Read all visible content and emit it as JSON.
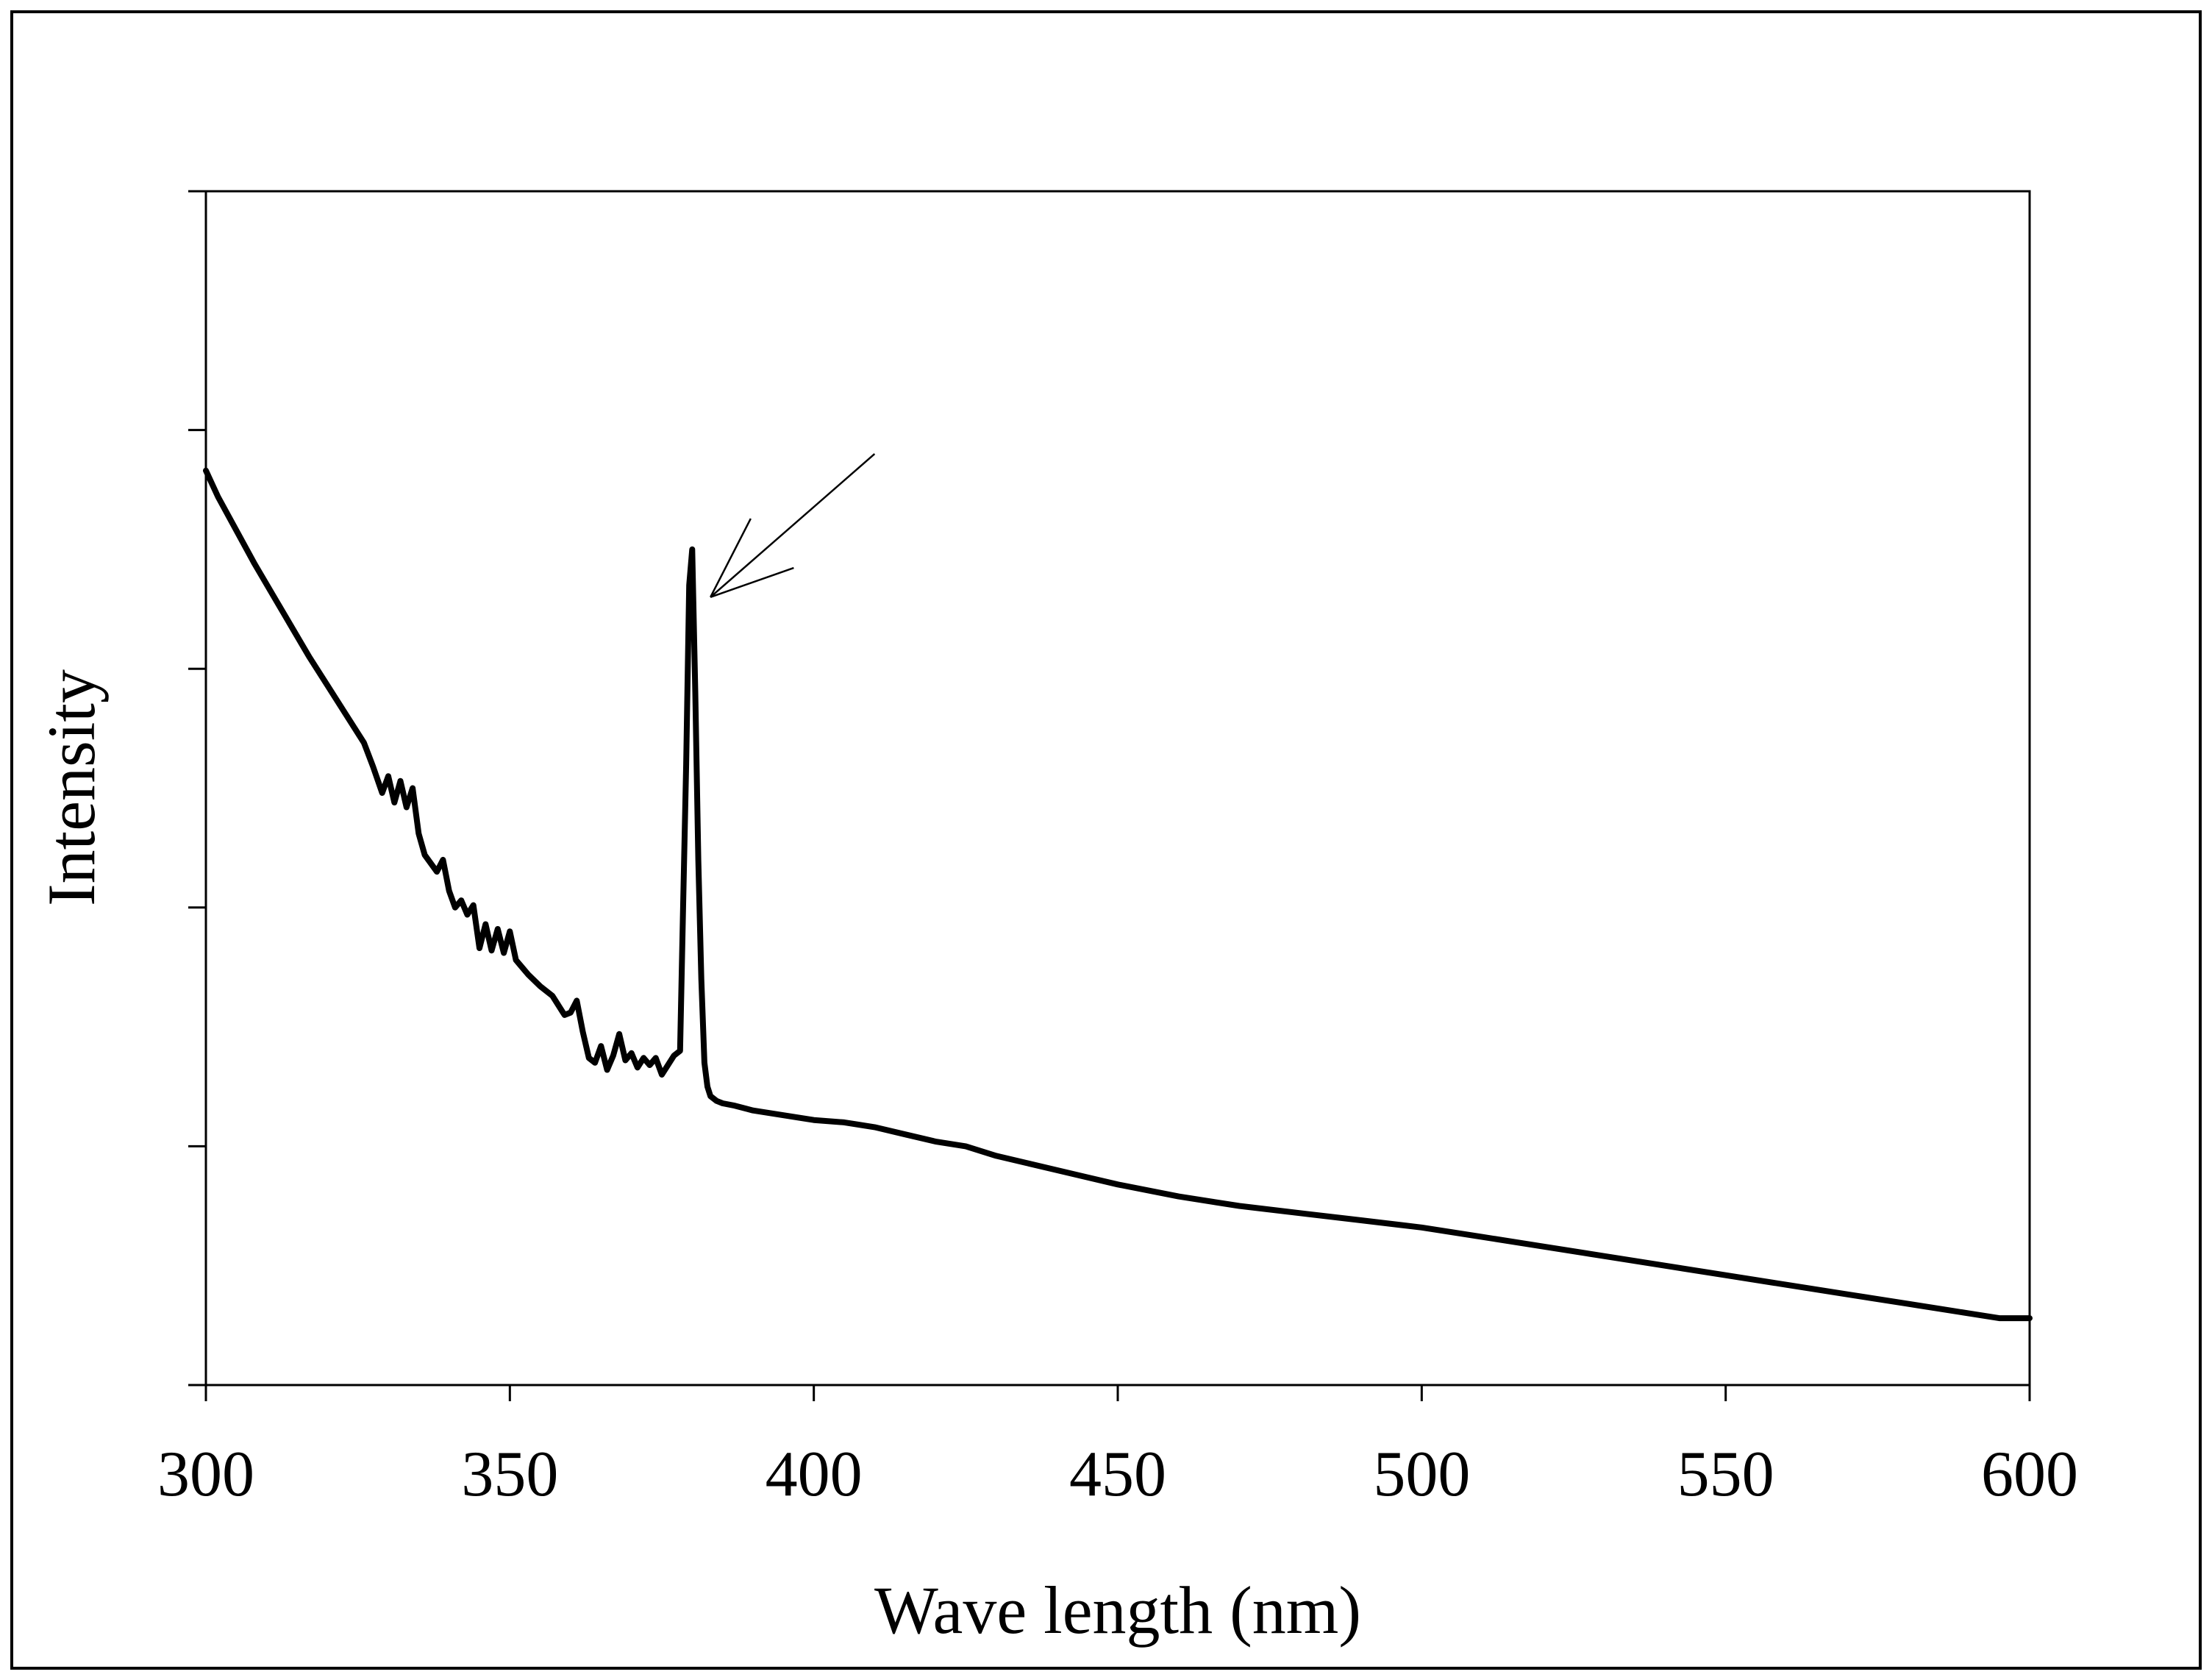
{
  "chart_data": {
    "type": "line",
    "title": "",
    "xlabel": "Wave length (nm)",
    "ylabel": "Intensity",
    "xlim": [
      300,
      600
    ],
    "ylim": [
      0,
      5
    ],
    "x_ticks": [
      300,
      350,
      400,
      450,
      500,
      550,
      600
    ],
    "x_tick_labels": [
      "300",
      "350",
      "400",
      "450",
      "500",
      "550",
      "600"
    ],
    "y_ticks": [
      0,
      1,
      2,
      3,
      4,
      5
    ],
    "y_tick_labels_shown": false,
    "grid": false,
    "legend": null,
    "annotations": [
      {
        "type": "arrow",
        "points_to": {
          "x": 383,
          "y": 3.3
        },
        "from": {
          "x": 410,
          "y": 3.9
        }
      }
    ],
    "series": [
      {
        "name": "Intensity",
        "color": "#000000",
        "x": [
          300,
          302,
          305,
          308,
          311,
          314,
          317,
          320,
          323,
          326,
          327.5,
          329,
          330,
          331,
          332,
          333,
          334,
          335,
          336,
          338,
          339,
          340,
          341,
          342,
          343,
          344,
          345,
          346,
          347,
          348,
          349,
          350,
          351,
          352,
          353,
          355,
          357,
          359,
          360,
          361,
          362,
          363,
          364,
          365,
          366,
          367,
          368,
          369,
          370,
          371,
          372,
          373,
          374,
          375,
          376,
          377,
          378,
          378.5,
          379,
          379.5,
          380,
          380.5,
          381,
          381.5,
          382,
          382.5,
          383,
          384,
          385,
          387,
          390,
          395,
          400,
          405,
          410,
          415,
          420,
          425,
          430,
          435,
          440,
          445,
          450,
          460,
          470,
          480,
          490,
          500,
          510,
          520,
          530,
          540,
          550,
          560,
          570,
          580,
          585,
          590,
          595,
          600
        ],
        "y": [
          3.83,
          3.72,
          3.58,
          3.44,
          3.31,
          3.18,
          3.05,
          2.93,
          2.81,
          2.69,
          2.59,
          2.48,
          2.55,
          2.44,
          2.53,
          2.42,
          2.5,
          2.31,
          2.22,
          2.15,
          2.2,
          2.07,
          2.0,
          2.03,
          1.97,
          2.01,
          1.83,
          1.93,
          1.82,
          1.91,
          1.81,
          1.9,
          1.78,
          1.75,
          1.72,
          1.67,
          1.63,
          1.55,
          1.56,
          1.61,
          1.48,
          1.37,
          1.35,
          1.42,
          1.32,
          1.38,
          1.47,
          1.36,
          1.39,
          1.33,
          1.37,
          1.34,
          1.37,
          1.3,
          1.34,
          1.38,
          1.4,
          2.0,
          2.6,
          3.35,
          3.5,
          2.9,
          2.2,
          1.7,
          1.35,
          1.25,
          1.21,
          1.19,
          1.18,
          1.17,
          1.15,
          1.13,
          1.11,
          1.1,
          1.08,
          1.05,
          1.02,
          1.0,
          0.96,
          0.93,
          0.9,
          0.87,
          0.84,
          0.79,
          0.75,
          0.72,
          0.69,
          0.66,
          0.62,
          0.58,
          0.54,
          0.5,
          0.46,
          0.42,
          0.38,
          0.34,
          0.32,
          0.3,
          0.28,
          0.28
        ]
      }
    ]
  }
}
